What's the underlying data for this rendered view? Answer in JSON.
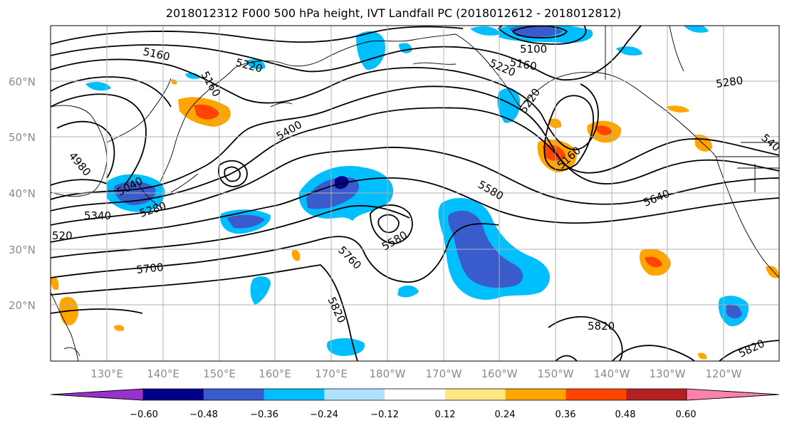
{
  "title": "2018012312 F000 500 hPa height, IVT Landfall PC (2018012612 - 2018012812)",
  "map": {
    "lat_labels": [
      "60°N",
      "50°N",
      "40°N",
      "30°N",
      "20°N"
    ],
    "lon_labels": [
      "130°E",
      "140°E",
      "150°E",
      "160°E",
      "170°E",
      "180°W",
      "170°W",
      "160°W",
      "150°W",
      "140°W",
      "130°W",
      "120°W"
    ],
    "contour_labels": [
      "5160",
      "5220",
      "5100",
      "5160",
      "5220",
      "5280",
      "5160",
      "5400",
      "5160",
      "4980",
      "5040",
      "5280",
      "5340",
      "5580",
      "5640",
      "5580",
      "5700",
      "5760",
      "5820",
      "5820",
      "5820",
      "540",
      "5220",
      "520"
    ]
  },
  "colorbar": {
    "ticks": [
      "−0.60",
      "−0.48",
      "−0.36",
      "−0.24",
      "−0.12",
      "0.12",
      "0.24",
      "0.36",
      "0.48",
      "0.60"
    ],
    "colors": [
      "#9932cc",
      "#00008b",
      "#3a5bcc",
      "#00bfff",
      "#b0e2ff",
      "#ffffff",
      "#ffe680",
      "#ffa500",
      "#ff4500",
      "#b22222",
      "#ff82ab"
    ]
  }
}
